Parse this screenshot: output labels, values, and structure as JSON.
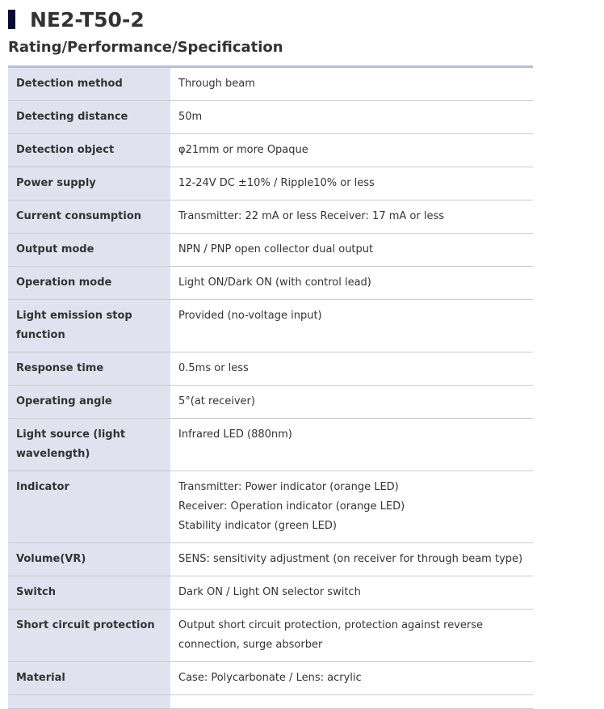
{
  "title": "NE2-T50-2",
  "section": "Rating/Performance/Specification",
  "rows": [
    {
      "label": "Detection method",
      "value": "Through beam"
    },
    {
      "label": "Detecting distance",
      "value": "50m"
    },
    {
      "label": "Detection object",
      "value": "φ21mm or more Opaque"
    },
    {
      "label": "Power supply",
      "value": "12-24V DC ±10% / Ripple10% or less"
    },
    {
      "label": "Current consumption",
      "value": "Transmitter: 22 mA or less Receiver: 17 mA or less"
    },
    {
      "label": "Output mode",
      "value": "NPN / PNP open collector dual output"
    },
    {
      "label": "Operation mode",
      "value": "Light ON/Dark ON (with control lead)"
    },
    {
      "label": "Light emission stop function",
      "value": "Provided (no-voltage input)"
    },
    {
      "label": "Response time",
      "value": "0.5ms or less"
    },
    {
      "label": "Operating angle",
      "value": "5°(at receiver)"
    },
    {
      "label": "Light source (light wavelength)",
      "value": "Infrared LED (880nm)"
    },
    {
      "label": "Indicator",
      "value": "Transmitter: Power indicator (orange LED)\nReceiver: Operation indicator (orange LED)\nStability indicator (green LED)"
    },
    {
      "label": "Volume(VR)",
      "value": "SENS: sensitivity adjustment (on receiver for through beam type)"
    },
    {
      "label": "Switch",
      "value": "Dark ON / Light ON selector switch"
    },
    {
      "label": "Short circuit protection",
      "value": "Output short circuit protection, protection against reverse connection, surge absorber"
    },
    {
      "label": "Material",
      "value": "Case: Polycarbonate / Lens: acrylic"
    },
    {
      "label": "",
      "value": ""
    }
  ]
}
